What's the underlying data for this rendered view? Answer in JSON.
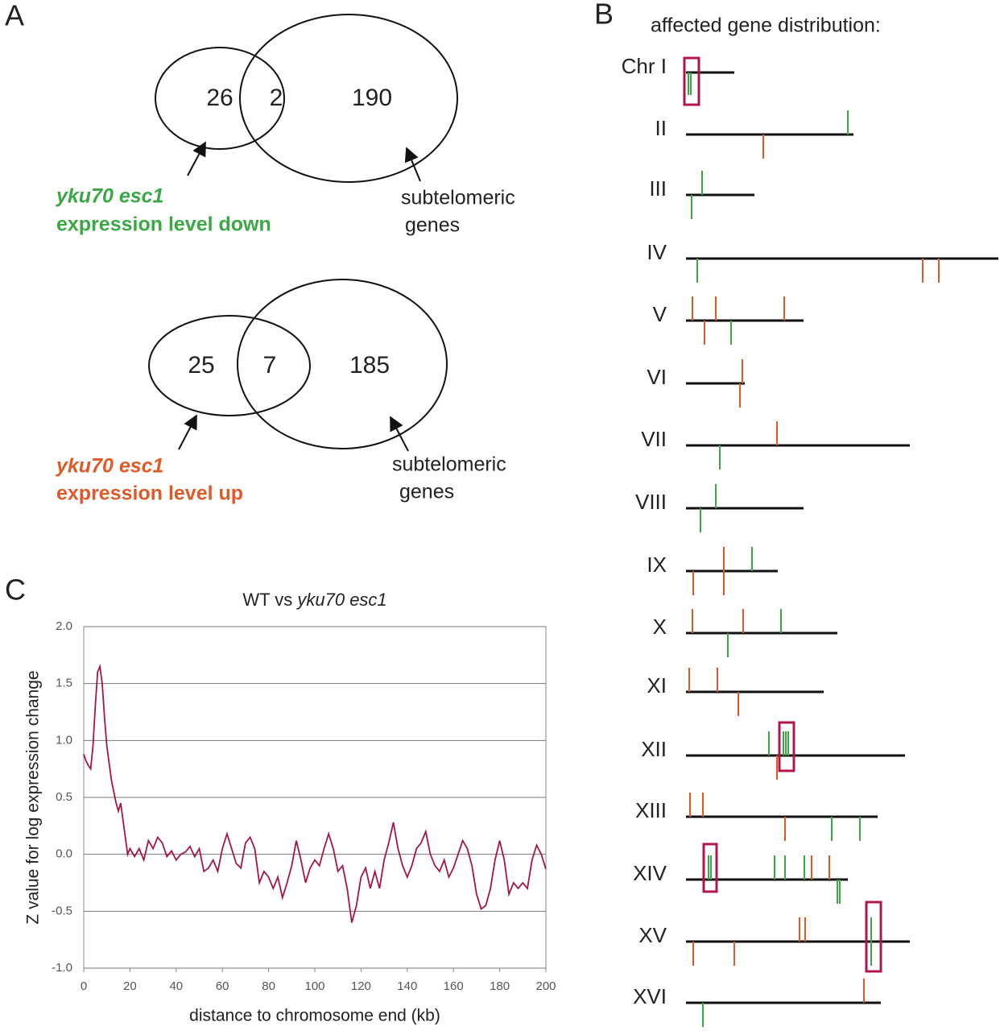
{
  "panel_a": {
    "letter": "A",
    "down": {
      "left": 26,
      "overlap": 2,
      "right": 190,
      "label_italic": "yku70 esc1",
      "label": "expression level down",
      "right_label_1": "subtelomeric",
      "right_label_2": "genes"
    },
    "up": {
      "left": 25,
      "overlap": 7,
      "right": 185,
      "label_italic": "yku70 esc1",
      "label": "expression level up",
      "right_label_1": "subtelomeric",
      "right_label_2": "genes"
    }
  },
  "panel_b": {
    "letter": "B",
    "title": "affected gene distribution:",
    "chromosomes": [
      "Chr I",
      "II",
      "III",
      "IV",
      "V",
      "VI",
      "VII",
      "VIII",
      "IX",
      "X",
      "XI",
      "XII",
      "XIII",
      "XIV",
      "XV",
      "XVI"
    ]
  },
  "chart_data": {
    "type": "line",
    "letter": "C",
    "title": "WT vs",
    "title_italic": "yku70 esc1",
    "x_label": "distance to chromosome end (kb)",
    "y_label": "Z value for log expression change",
    "color": "#a3164c",
    "grid": true,
    "xlim": [
      0,
      200
    ],
    "ylim": [
      -1,
      2
    ],
    "xticks": [
      0,
      20,
      40,
      60,
      80,
      100,
      120,
      140,
      160,
      180,
      200
    ],
    "yticks": [
      {
        "value": 2,
        "label": "2.0"
      },
      1.5,
      {
        "value": 1,
        "label": "1.0"
      },
      0.5,
      {
        "value": 0,
        "label": "0.0"
      },
      -0.5,
      {
        "value": -1,
        "label": "-1.0"
      }
    ],
    "x": [
      0,
      1,
      2,
      3,
      4,
      5,
      6,
      7,
      8,
      9,
      10,
      11,
      12,
      13,
      14,
      15,
      16,
      17,
      18,
      19,
      20,
      22,
      24,
      26,
      28,
      30,
      32,
      34,
      36,
      38,
      40,
      42,
      44,
      46,
      48,
      50,
      52,
      54,
      56,
      58,
      60,
      62,
      64,
      66,
      68,
      70,
      72,
      74,
      76,
      78,
      80,
      82,
      84,
      86,
      88,
      90,
      92,
      94,
      96,
      98,
      100,
      102,
      104,
      106,
      108,
      110,
      112,
      114,
      116,
      118,
      120,
      122,
      124,
      126,
      128,
      130,
      132,
      134,
      136,
      138,
      140,
      142,
      144,
      146,
      148,
      150,
      152,
      154,
      156,
      158,
      160,
      162,
      164,
      166,
      168,
      170,
      172,
      174,
      176,
      178,
      180,
      182,
      184,
      186,
      188,
      190,
      192,
      194,
      196,
      198,
      200
    ],
    "values": [
      0.88,
      0.82,
      0.78,
      0.75,
      0.95,
      1.3,
      1.6,
      1.65,
      1.5,
      1.2,
      0.95,
      0.8,
      0.65,
      0.55,
      0.45,
      0.38,
      0.45,
      0.3,
      0.15,
      0.0,
      0.05,
      -0.02,
      0.05,
      -0.05,
      0.12,
      0.05,
      0.15,
      0.1,
      -0.02,
      0.03,
      -0.05,
      0.0,
      0.02,
      0.07,
      -0.02,
      0.05,
      -0.15,
      -0.12,
      -0.05,
      -0.15,
      0.05,
      0.18,
      0.05,
      -0.08,
      -0.12,
      0.1,
      0.15,
      0.05,
      -0.25,
      -0.15,
      -0.2,
      -0.3,
      -0.2,
      -0.38,
      -0.25,
      -0.1,
      0.12,
      -0.05,
      -0.25,
      -0.12,
      -0.05,
      -0.1,
      0.05,
      0.18,
      0.05,
      -0.15,
      -0.1,
      -0.3,
      -0.6,
      -0.45,
      -0.2,
      -0.12,
      -0.3,
      -0.15,
      -0.3,
      -0.05,
      0.1,
      0.28,
      0.05,
      -0.1,
      -0.2,
      -0.1,
      0.05,
      0.1,
      0.2,
      0.0,
      -0.1,
      -0.15,
      -0.05,
      -0.2,
      -0.12,
      0.0,
      0.12,
      0.05,
      -0.1,
      -0.35,
      -0.48,
      -0.45,
      -0.3,
      -0.05,
      0.12,
      -0.05,
      -0.35,
      -0.25,
      -0.3,
      -0.25,
      -0.3,
      -0.05,
      0.08,
      0.0,
      -0.13
    ]
  }
}
